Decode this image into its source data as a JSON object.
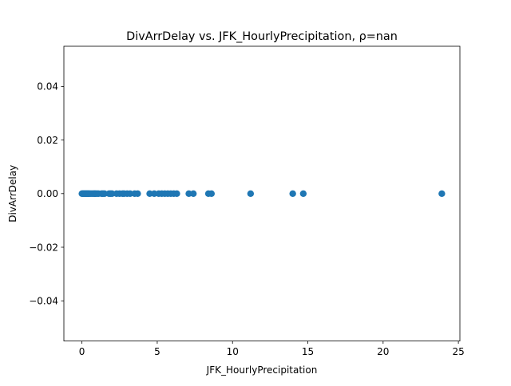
{
  "chart_data": {
    "type": "scatter",
    "title": "DivArrDelay vs. JFK_HourlyPrecipitation, ρ=nan",
    "xlabel": "JFK_HourlyPrecipitation",
    "ylabel": "DivArrDelay",
    "xlim": [
      -1.2,
      25.1
    ],
    "ylim": [
      -0.055,
      0.055
    ],
    "xticks": [
      0,
      5,
      10,
      15,
      20,
      25
    ],
    "xtick_labels": [
      "0",
      "5",
      "10",
      "15",
      "20",
      "25"
    ],
    "yticks": [
      -0.04,
      -0.02,
      0.0,
      0.02,
      0.04
    ],
    "ytick_labels": [
      "−0.04",
      "−0.02",
      "0.00",
      "0.02",
      "0.04"
    ],
    "grid": false,
    "legend": "none",
    "marker_color": "#1f77b4",
    "series": [
      {
        "x": [
          0.0,
          0.05,
          0.1,
          0.15,
          0.2,
          0.25,
          0.3,
          0.35,
          0.4,
          0.45,
          0.5,
          0.6,
          0.7,
          0.8,
          0.85,
          0.9,
          1.0,
          1.1,
          1.3,
          1.4,
          1.5,
          1.8,
          1.9,
          2.0,
          2.3,
          2.5,
          2.7,
          2.8,
          3.0,
          3.2,
          3.5,
          3.7,
          4.5,
          4.8,
          5.1,
          5.3,
          5.5,
          5.7,
          5.9,
          6.1,
          6.3,
          7.1,
          7.4,
          8.4,
          8.6,
          11.2,
          14.0,
          14.7,
          23.9
        ],
        "y": [
          0,
          0,
          0,
          0,
          0,
          0,
          0,
          0,
          0,
          0,
          0,
          0,
          0,
          0,
          0,
          0,
          0,
          0,
          0,
          0,
          0,
          0,
          0,
          0,
          0,
          0,
          0,
          0,
          0,
          0,
          0,
          0,
          0,
          0,
          0,
          0,
          0,
          0,
          0,
          0,
          0,
          0,
          0,
          0,
          0,
          0,
          0,
          0,
          0
        ]
      }
    ]
  }
}
